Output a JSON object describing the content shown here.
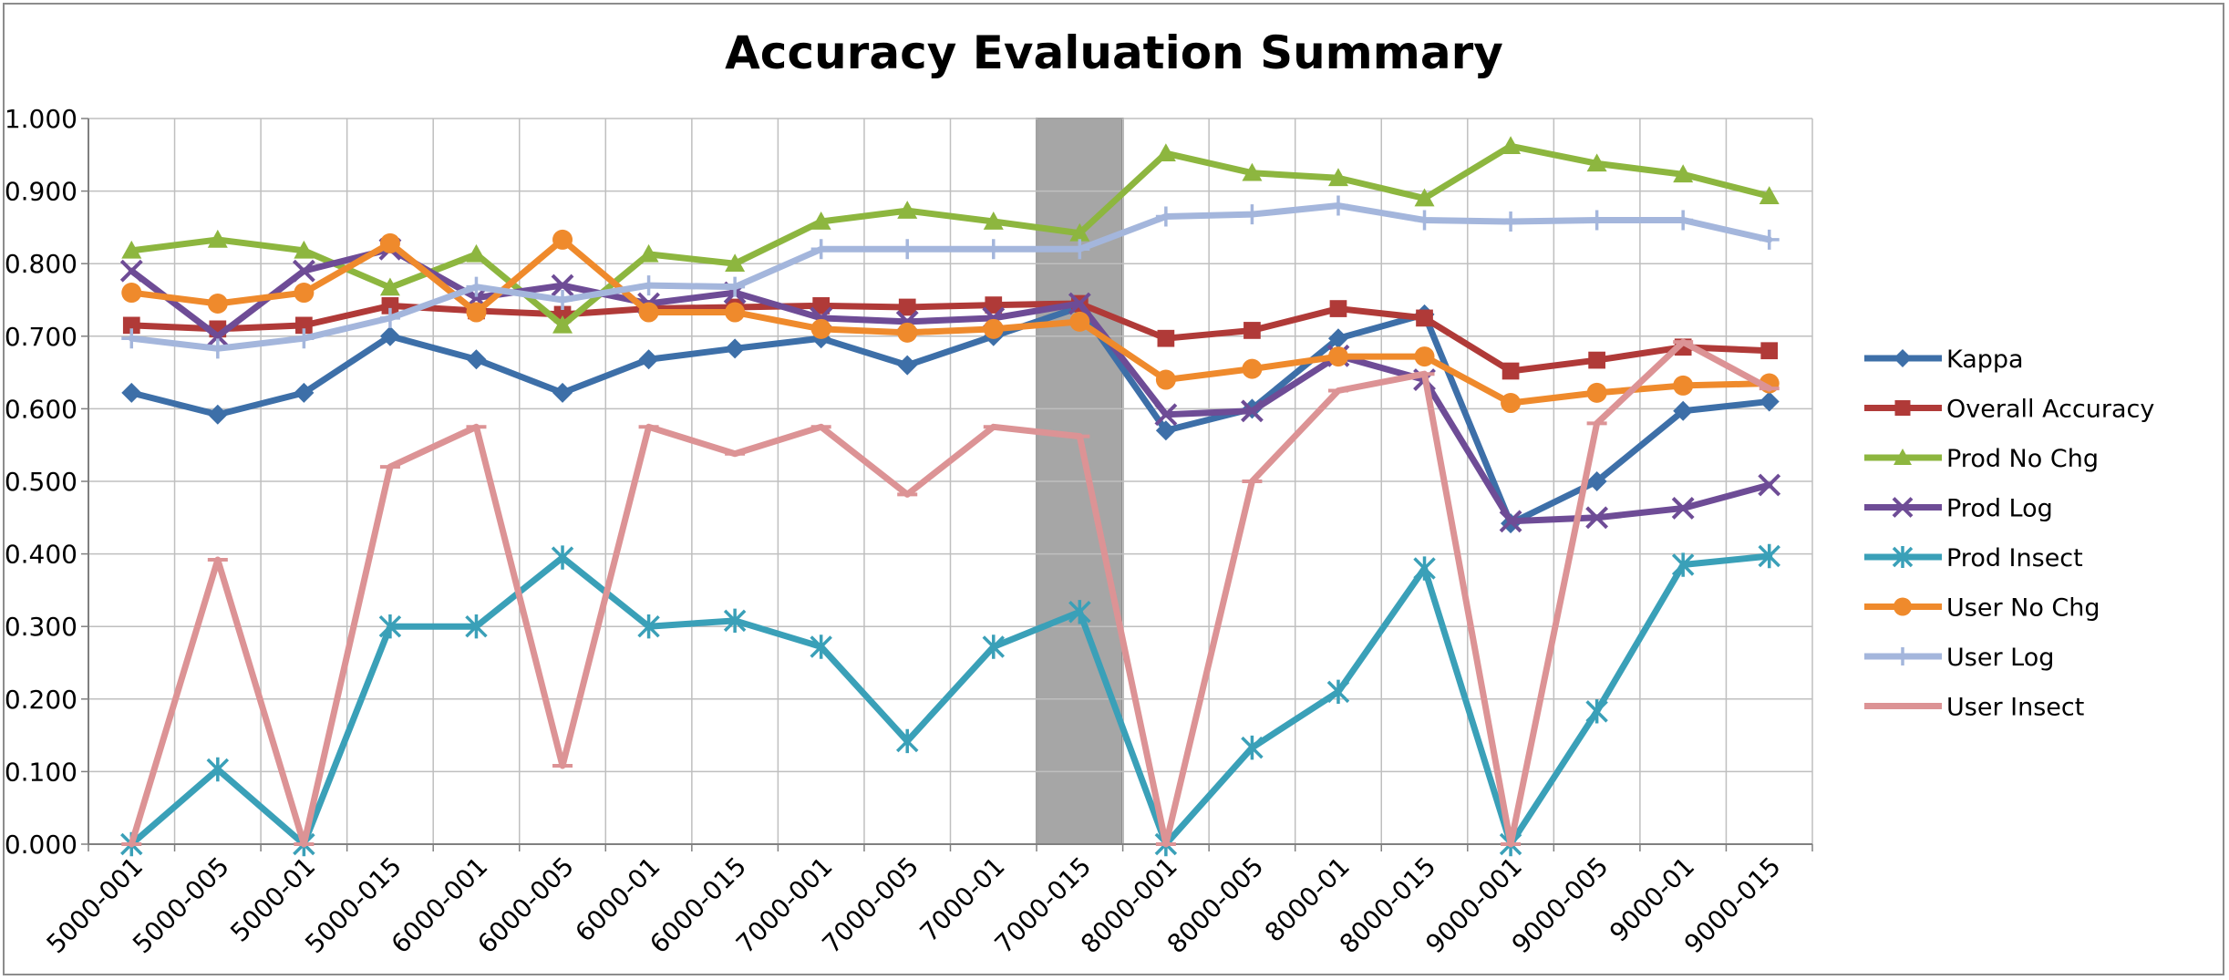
{
  "chart_data": {
    "type": "line",
    "title": "Accuracy Evaluation Summary",
    "xlabel": "",
    "ylabel": "",
    "ylim": [
      0,
      1
    ],
    "y_ticks": [
      "0.000",
      "0.100",
      "0.200",
      "0.300",
      "0.400",
      "0.500",
      "0.600",
      "0.700",
      "0.800",
      "0.900",
      "1.000"
    ],
    "categories": [
      "5000-001",
      "5000-005",
      "5000-01",
      "5000-015",
      "6000-001",
      "6000-005",
      "6000-01",
      "6000-015",
      "7000-001",
      "7000-005",
      "7000-01",
      "7000-015",
      "8000-001",
      "8000-005",
      "8000-01",
      "8000-015",
      "9000-001",
      "9000-005",
      "9000-01",
      "9000-015"
    ],
    "highlight_band": {
      "from": "7000-01",
      "to": "7000-015",
      "color": "#a6a6a6"
    },
    "grid": true,
    "legend_position": "right",
    "series": [
      {
        "name": "Kappa",
        "color": "#3d6fa8",
        "marker": "diamond",
        "values": [
          0.622,
          0.592,
          0.622,
          0.7,
          0.668,
          0.622,
          0.668,
          0.683,
          0.697,
          0.66,
          0.7,
          0.74,
          0.57,
          0.6,
          0.697,
          0.73,
          0.442,
          0.5,
          0.597,
          0.61
        ]
      },
      {
        "name": "Overall Accuracy",
        "color": "#b03a38",
        "marker": "square",
        "values": [
          0.715,
          0.71,
          0.715,
          0.742,
          0.735,
          0.73,
          0.738,
          0.74,
          0.742,
          0.74,
          0.743,
          0.745,
          0.697,
          0.708,
          0.738,
          0.725,
          0.652,
          0.667,
          0.685,
          0.68
        ]
      },
      {
        "name": "Prod No Chg",
        "color": "#8db63f",
        "marker": "triangle",
        "values": [
          0.818,
          0.833,
          0.818,
          0.767,
          0.813,
          0.715,
          0.813,
          0.8,
          0.858,
          0.873,
          0.858,
          0.842,
          0.952,
          0.925,
          0.918,
          0.89,
          0.962,
          0.938,
          0.923,
          0.893
        ]
      },
      {
        "name": "Prod Log",
        "color": "#6e4c96",
        "marker": "x",
        "values": [
          0.79,
          0.7,
          0.79,
          0.82,
          0.753,
          0.77,
          0.745,
          0.76,
          0.725,
          0.72,
          0.725,
          0.745,
          0.592,
          0.597,
          0.673,
          0.64,
          0.445,
          0.45,
          0.463,
          0.495
        ]
      },
      {
        "name": "Prod Insect",
        "color": "#3aa0b8",
        "marker": "asterisk",
        "values": [
          0.0,
          0.103,
          0.0,
          0.3,
          0.3,
          0.395,
          0.3,
          0.308,
          0.272,
          0.142,
          0.272,
          0.32,
          0.0,
          0.133,
          0.21,
          0.38,
          0.0,
          0.183,
          0.385,
          0.397
        ]
      },
      {
        "name": "User No Chg",
        "color": "#ef8a2c",
        "marker": "circle",
        "values": [
          0.76,
          0.745,
          0.76,
          0.828,
          0.733,
          0.833,
          0.733,
          0.733,
          0.71,
          0.705,
          0.71,
          0.72,
          0.64,
          0.655,
          0.672,
          0.672,
          0.608,
          0.622,
          0.632,
          0.635
        ]
      },
      {
        "name": "User Log",
        "color": "#a4b6dc",
        "marker": "plus",
        "values": [
          0.697,
          0.683,
          0.697,
          0.725,
          0.768,
          0.75,
          0.77,
          0.768,
          0.82,
          0.82,
          0.82,
          0.82,
          0.865,
          0.868,
          0.88,
          0.86,
          0.858,
          0.86,
          0.86,
          0.833
        ]
      },
      {
        "name": "User Insect",
        "color": "#dc9395",
        "marker": "dash",
        "values": [
          0.0,
          0.392,
          0.0,
          0.52,
          0.575,
          0.108,
          0.575,
          0.538,
          0.575,
          0.482,
          0.575,
          0.562,
          0.0,
          0.5,
          0.625,
          0.648,
          0.0,
          0.58,
          0.692,
          0.628
        ]
      }
    ]
  }
}
